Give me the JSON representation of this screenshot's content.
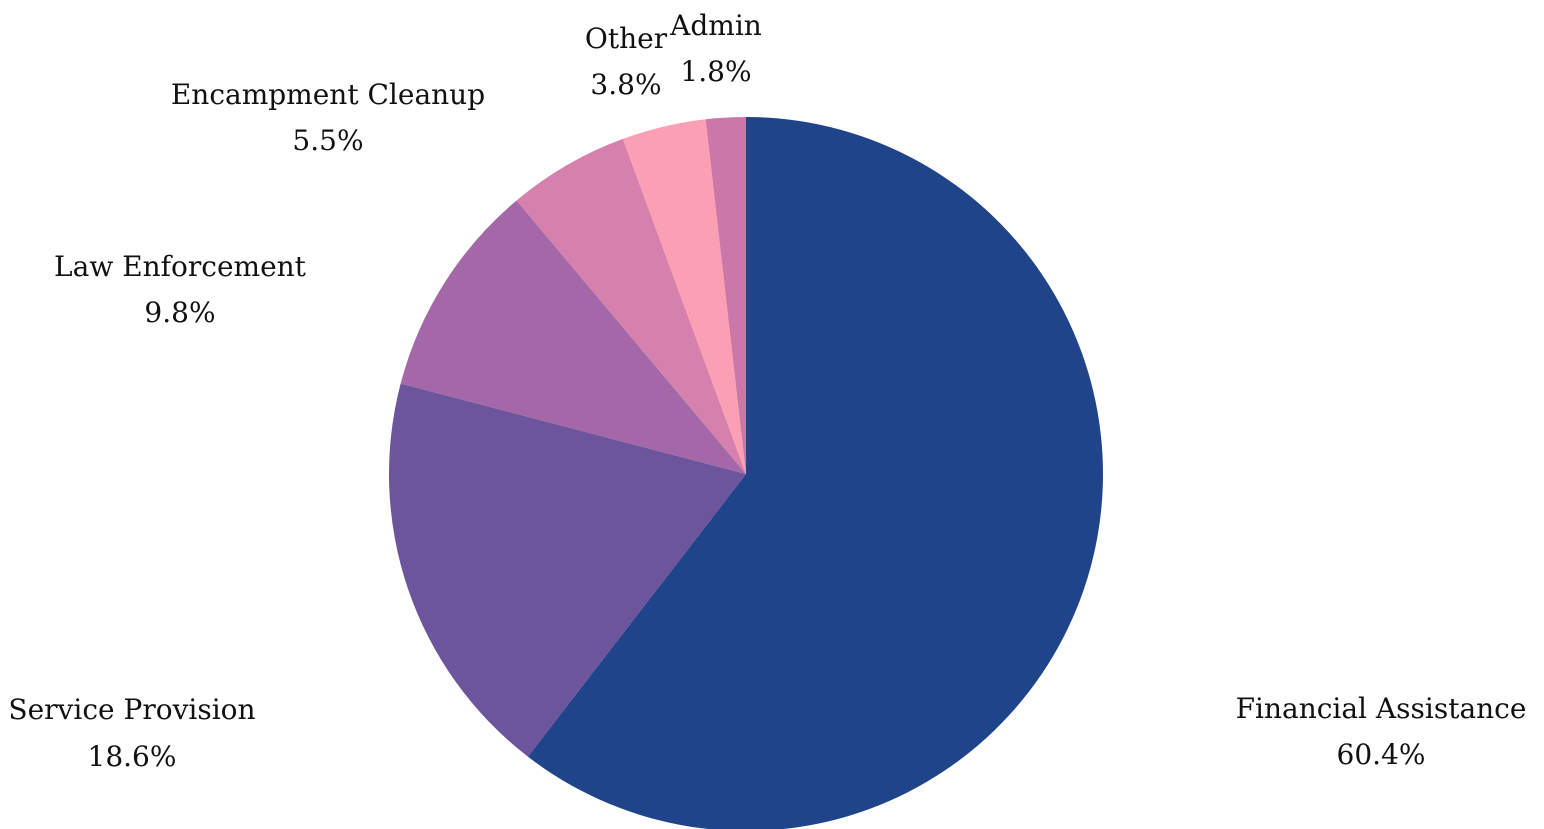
{
  "chart_data": {
    "type": "pie",
    "start": "12 o'clock",
    "direction": "clockwise",
    "slices": [
      {
        "label": "Financial Assistance",
        "value": 60.4,
        "value_label": "60.4%",
        "color": "#1f4489"
      },
      {
        "label": "Service Provision",
        "value": 18.6,
        "value_label": "18.6%",
        "color": "#6c559c"
      },
      {
        "label": "Law Enforcement",
        "value": 9.8,
        "value_label": "9.8%",
        "color": "#a468a8"
      },
      {
        "label": "Encampment Cleanup",
        "value": 5.5,
        "value_label": "5.5%",
        "color": "#d580ad"
      },
      {
        "label": "Other",
        "value": 3.8,
        "value_label": "3.8%",
        "color": "#fba0b4"
      },
      {
        "label": "Admin",
        "value": 1.8,
        "value_label": "1.8%",
        "color": "#cb78a8"
      }
    ]
  }
}
